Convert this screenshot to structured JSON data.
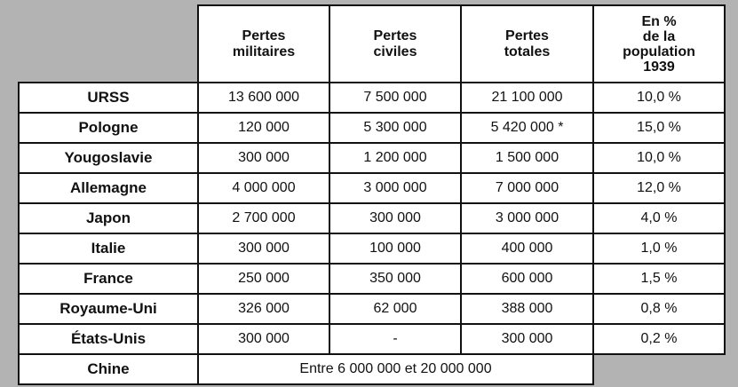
{
  "headers": [
    "",
    "Pertes\nmilitaires",
    "Pertes\nciviles",
    "Pertes\ntotales",
    "En %\nde la\npopulation\n1939"
  ],
  "header_lines": {
    "militaires": [
      "Pertes",
      "militaires"
    ],
    "civiles": [
      "Pertes",
      "civiles"
    ],
    "totales": [
      "Pertes",
      "totales"
    ],
    "population": [
      "En %",
      "de la",
      "population",
      "1939"
    ]
  },
  "rows": [
    {
      "country": "URSS",
      "militaires": "13 600 000",
      "civiles": "7 500 000",
      "totales": "21 100 000",
      "pct": "10,0 %"
    },
    {
      "country": "Pologne",
      "militaires": "120 000",
      "civiles": "5 300 000",
      "totales": "5 420 000 *",
      "pct": "15,0 %"
    },
    {
      "country": "Yougoslavie",
      "militaires": "300 000",
      "civiles": "1 200 000",
      "totales": "1 500 000",
      "pct": "10,0 %"
    },
    {
      "country": "Allemagne",
      "militaires": "4 000 000",
      "civiles": "3 000 000",
      "totales": "7 000 000",
      "pct": "12,0 %"
    },
    {
      "country": "Japon",
      "militaires": "2 700 000",
      "civiles": "300 000",
      "totales": "3 000 000",
      "pct": "4,0 %"
    },
    {
      "country": "Italie",
      "militaires": "300 000",
      "civiles": "100 000",
      "totales": "400 000",
      "pct": "1,0 %"
    },
    {
      "country": "France",
      "militaires": "250 000",
      "civiles": "350 000",
      "totales": "600 000",
      "pct": "1,5 %"
    },
    {
      "country": "Royaume-Uni",
      "militaires": "326 000",
      "civiles": "62 000",
      "totales": "388 000",
      "pct": "0,8 %"
    },
    {
      "country": "États-Unis",
      "militaires": "300 000",
      "civiles": "-",
      "totales": "300 000",
      "pct": "0,2 %"
    }
  ],
  "last_row": {
    "country": "Chine",
    "merged": "Entre 6 000 000 et 20 000 000"
  }
}
